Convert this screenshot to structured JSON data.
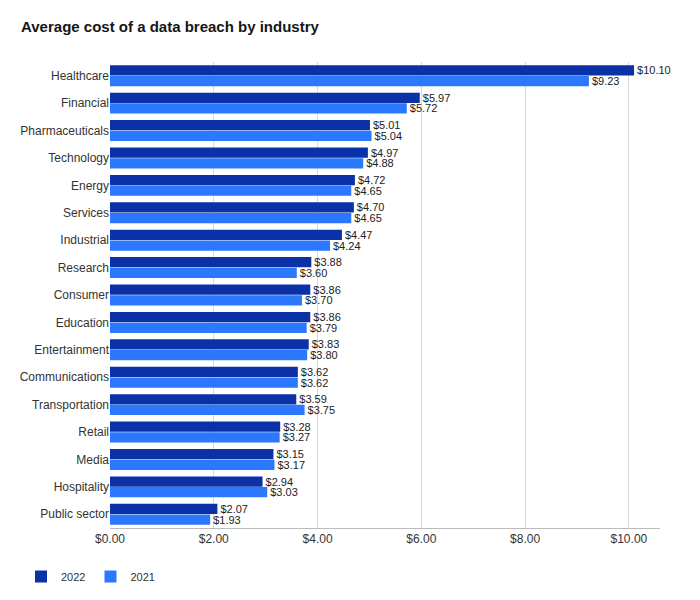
{
  "chart_data": {
    "type": "bar",
    "title": "Average cost of a data breach by industry",
    "orientation": "horizontal",
    "categories": [
      "Healthcare",
      "Financial",
      "Pharmaceuticals",
      "Technology",
      "Energy",
      "Services",
      "Industrial",
      "Research",
      "Consumer",
      "Education",
      "Entertainment",
      "Communications",
      "Transportation",
      "Retail",
      "Media",
      "Hospitality",
      "Public sector"
    ],
    "series": [
      {
        "name": "2022",
        "color": "#0a31a6",
        "values": [
          10.1,
          5.97,
          5.01,
          4.97,
          4.72,
          4.7,
          4.47,
          3.88,
          3.86,
          3.86,
          3.83,
          3.62,
          3.59,
          3.28,
          3.15,
          2.94,
          2.07
        ],
        "value_labels": [
          "$10.10",
          "$5.97",
          "$5.01",
          "$4.97",
          "$4.72",
          "$4.70",
          "$4.47",
          "$3.88",
          "$3.86",
          "$3.86",
          "$3.83",
          "$3.62",
          "$3.59",
          "$3.28",
          "$3.15",
          "$2.94",
          "$2.07"
        ]
      },
      {
        "name": "2021",
        "color": "#2b78ff",
        "values": [
          9.23,
          5.72,
          5.04,
          4.88,
          4.65,
          4.65,
          4.24,
          3.6,
          3.7,
          3.79,
          3.8,
          3.62,
          3.75,
          3.27,
          3.17,
          3.03,
          1.93
        ],
        "value_labels": [
          "$9.23",
          "$5.72",
          "$5.04",
          "$4.88",
          "$4.65",
          "$4.65",
          "$4.24",
          "$3.60",
          "$3.70",
          "$3.79",
          "$3.80",
          "$3.62",
          "$3.75",
          "$3.27",
          "$3.17",
          "$3.03",
          "$1.93"
        ]
      }
    ],
    "xlim": [
      0,
      10.6
    ],
    "xticks": [
      {
        "value": 0,
        "label": "$0.00"
      },
      {
        "value": 2,
        "label": "$2.00"
      },
      {
        "value": 4,
        "label": "$4.00"
      },
      {
        "value": 6,
        "label": "$6.00"
      },
      {
        "value": 8,
        "label": "$8.00"
      },
      {
        "value": 10,
        "label": "$10.00"
      }
    ],
    "grid": true,
    "legend": "bottom left",
    "data_labels": true
  }
}
